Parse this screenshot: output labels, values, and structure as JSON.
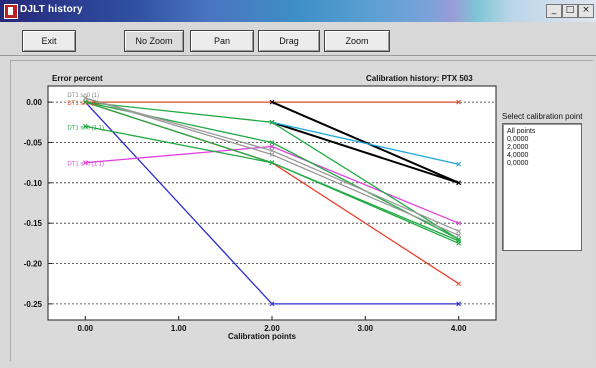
{
  "window": {
    "title": "DJLT history",
    "min_label": "_",
    "max_label": "□",
    "close_label": "×"
  },
  "toolbar": {
    "buttons": [
      {
        "key": "exit",
        "label": "Exit"
      },
      {
        "key": "no-zoom",
        "label": "No Zoom"
      },
      {
        "key": "pan",
        "label": "Pan"
      },
      {
        "key": "drag",
        "label": "Drag"
      },
      {
        "key": "zoom",
        "label": "Zoom"
      }
    ]
  },
  "plot": {
    "y_axis_title": "Error percent",
    "chart_title": "Calibration history: PTX 503",
    "x_axis_title": "Calibration points"
  },
  "select_panel": {
    "title": "Select calibration point",
    "items": [
      "All points",
      "0,0000",
      "2,0000",
      "4,0000",
      "0,0000"
    ]
  },
  "chart_data": {
    "type": "line",
    "title": "Calibration history: PTX 503",
    "xlabel": "Calibration points",
    "ylabel": "Error percent",
    "xlim": [
      -0.4,
      4.4
    ],
    "ylim": [
      -0.27,
      0.02
    ],
    "x_ticks": [
      "0.00",
      "1.00",
      "2.00",
      "3.00",
      "4.00"
    ],
    "y_ticks": [
      "0.00",
      "-0.05",
      "-0.10",
      "-0.15",
      "-0.20",
      "-0.25"
    ],
    "grid": "dashed horizontal",
    "point_labels": [
      {
        "text": "DT1 sn0 (1)",
        "x": 0,
        "y": 0.01,
        "color": "#888888"
      },
      {
        "text": "DT1 sn0 (1)",
        "x": 0,
        "y": 0.0,
        "color": "#d94a2a"
      },
      {
        "text": "DT1 sn0 (1.1)",
        "x": 0,
        "y": -0.03,
        "color": "#2aa04a"
      },
      {
        "text": "DT1 sn0 (1.1)",
        "x": 0,
        "y": -0.075,
        "color": "#d94ad0"
      }
    ],
    "series": [
      {
        "color": "#d94a2a",
        "x": [
          0,
          2,
          4
        ],
        "y": [
          0.0,
          0.0,
          0.0
        ]
      },
      {
        "color": "#2b2bd0",
        "x": [
          0,
          2,
          4
        ],
        "y": [
          0.0,
          -0.25,
          -0.25
        ]
      },
      {
        "color": "#000000",
        "x": [
          2,
          4
        ],
        "y": [
          0.0,
          -0.1
        ]
      },
      {
        "color": "#000000",
        "x": [
          2,
          4
        ],
        "y": [
          -0.025,
          -0.1
        ]
      },
      {
        "color": "#22a8d8",
        "x": [
          2,
          4
        ],
        "y": [
          -0.025,
          -0.077
        ]
      },
      {
        "color": "#e040e0",
        "x": [
          0,
          2,
          4
        ],
        "y": [
          -0.075,
          -0.055,
          -0.15
        ]
      },
      {
        "color": "#e8402a",
        "x": [
          0,
          2,
          4
        ],
        "y": [
          0.0,
          -0.075,
          -0.225
        ]
      },
      {
        "color": "#22aa44",
        "x": [
          0,
          2,
          4
        ],
        "y": [
          0.0,
          -0.025,
          -0.17
        ]
      },
      {
        "color": "#22aa44",
        "x": [
          0,
          2,
          4
        ],
        "y": [
          -0.03,
          -0.075,
          -0.175
        ]
      },
      {
        "color": "#22aa44",
        "x": [
          0,
          2,
          4
        ],
        "y": [
          0.0,
          -0.05,
          -0.17
        ]
      },
      {
        "color": "#22aa44",
        "x": [
          0,
          2,
          4
        ],
        "y": [
          0.0,
          -0.075,
          -0.172
        ]
      },
      {
        "color": "#999999",
        "x": [
          0,
          2,
          4
        ],
        "y": [
          0.005,
          -0.06,
          -0.16
        ]
      },
      {
        "color": "#999999",
        "x": [
          0,
          2,
          4
        ],
        "y": [
          0.005,
          -0.065,
          -0.165
        ]
      }
    ]
  }
}
